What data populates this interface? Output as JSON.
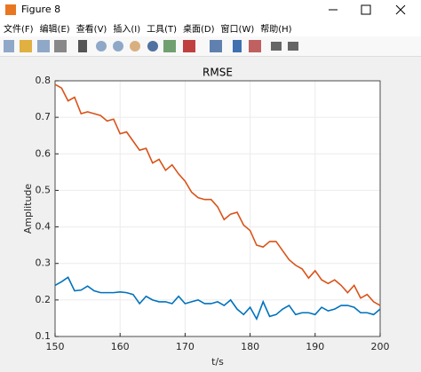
{
  "window": {
    "title": "Figure 8",
    "menu": [
      "文件(F)",
      "编辑(E)",
      "查看(V)",
      "插入(I)",
      "工具(T)",
      "桌面(D)",
      "窗口(W)",
      "帮助(H)"
    ]
  },
  "chart_data": {
    "type": "line",
    "title": "RMSE",
    "x_label": "t/s",
    "y_label": "Amplitude",
    "x": [
      150,
      151,
      152,
      153,
      154,
      155,
      156,
      157,
      158,
      159,
      160,
      161,
      162,
      163,
      164,
      165,
      166,
      167,
      168,
      169,
      170,
      171,
      172,
      173,
      174,
      175,
      176,
      177,
      178,
      179,
      180,
      181,
      182,
      183,
      184,
      185,
      186,
      187,
      188,
      189,
      190,
      191,
      192,
      193,
      194,
      195,
      196,
      197,
      198,
      199,
      200
    ],
    "series": [
      {
        "color": "#0072bd",
        "values": [
          0.24,
          0.25,
          0.262,
          0.225,
          0.227,
          0.238,
          0.225,
          0.22,
          0.22,
          0.22,
          0.222,
          0.22,
          0.215,
          0.19,
          0.21,
          0.2,
          0.195,
          0.195,
          0.19,
          0.21,
          0.19,
          0.195,
          0.2,
          0.19,
          0.19,
          0.195,
          0.185,
          0.2,
          0.175,
          0.16,
          0.18,
          0.148,
          0.195,
          0.155,
          0.16,
          0.175,
          0.185,
          0.16,
          0.165,
          0.165,
          0.16,
          0.18,
          0.17,
          0.175,
          0.185,
          0.185,
          0.18,
          0.165,
          0.165,
          0.16,
          0.175
        ]
      },
      {
        "color": "#d95319",
        "values": [
          0.79,
          0.78,
          0.745,
          0.755,
          0.71,
          0.715,
          0.71,
          0.705,
          0.69,
          0.695,
          0.655,
          0.66,
          0.635,
          0.61,
          0.615,
          0.575,
          0.585,
          0.555,
          0.57,
          0.545,
          0.525,
          0.495,
          0.48,
          0.475,
          0.475,
          0.455,
          0.42,
          0.435,
          0.44,
          0.405,
          0.39,
          0.35,
          0.345,
          0.36,
          0.36,
          0.335,
          0.31,
          0.295,
          0.285,
          0.26,
          0.28,
          0.255,
          0.245,
          0.255,
          0.24,
          0.22,
          0.24,
          0.205,
          0.215,
          0.195,
          0.185
        ]
      }
    ],
    "xlim": [
      150,
      200
    ],
    "xticks": [
      150,
      160,
      170,
      180,
      190,
      200
    ],
    "ylim": [
      0.1,
      0.8
    ],
    "yticks": [
      0.1,
      0.2,
      0.3,
      0.4,
      0.5,
      0.6,
      0.7,
      0.8
    ],
    "grid": true
  }
}
